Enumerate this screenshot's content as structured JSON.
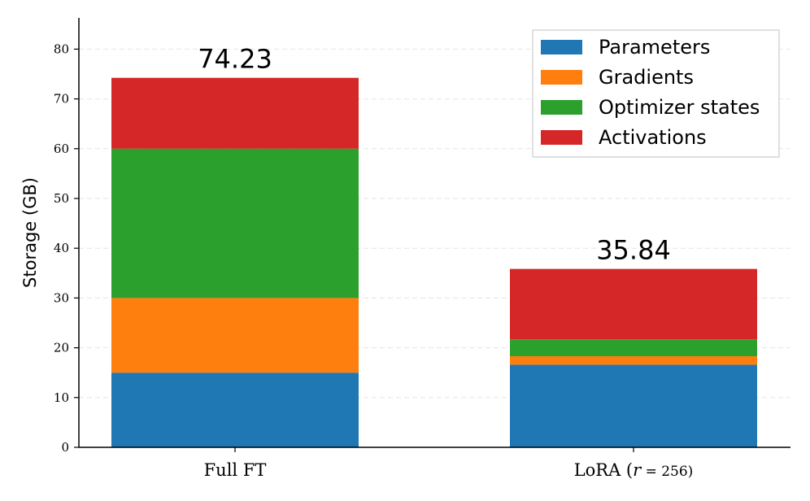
{
  "chart_data": {
    "type": "bar",
    "stacked": true,
    "title": "",
    "xlabel": "",
    "ylabel": "Storage (GB)",
    "ylim": [
      0,
      86
    ],
    "yticks": [
      0,
      10,
      20,
      30,
      40,
      50,
      60,
      70,
      80
    ],
    "grid": "horizontal dashed",
    "legend_position": "top-right",
    "categories": [
      "Full FT",
      "LoRA (r = 256)"
    ],
    "category_parts": [
      {
        "prefix": "Full FT",
        "italic": "",
        "suffix": ""
      },
      {
        "prefix": "LoRA (",
        "italic": "r",
        "suffix": " = 256)"
      }
    ],
    "series": [
      {
        "name": "Parameters",
        "color": "#1f77b4",
        "values": [
          15.0,
          16.6
        ]
      },
      {
        "name": "Gradients",
        "color": "#ff7f0e",
        "values": [
          15.0,
          1.7
        ]
      },
      {
        "name": "Optimizer states",
        "color": "#2ca02c",
        "values": [
          30.0,
          3.4
        ]
      },
      {
        "name": "Activations",
        "color": "#d62728",
        "values": [
          14.23,
          14.14
        ]
      }
    ],
    "totals": [
      "74.23",
      "35.84"
    ]
  }
}
